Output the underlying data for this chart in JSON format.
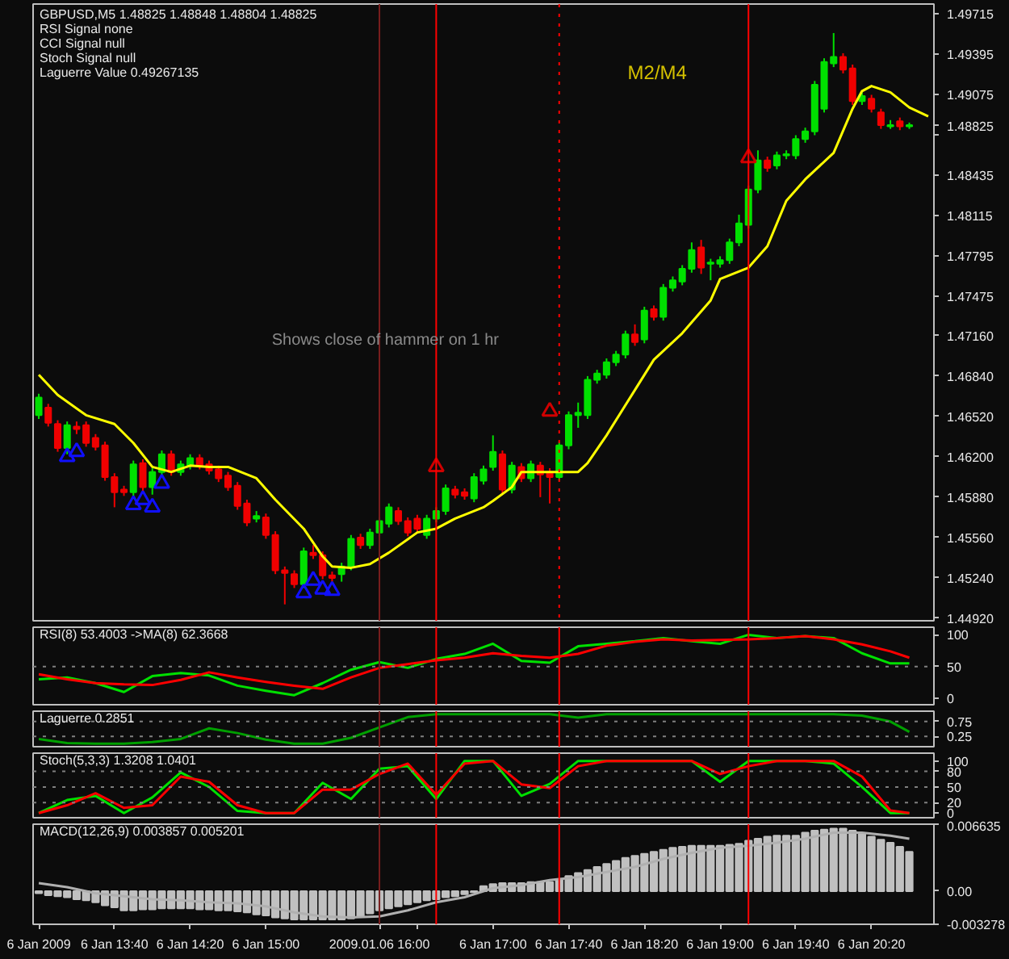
{
  "chart_data": [
    {
      "type": "candlestick",
      "tick_labels": "y",
      "xlim": [
        "2009-01-06T12:57",
        "2009-01-06T20:53"
      ],
      "ylim": [
        1.449,
        1.4979
      ],
      "yticks": [
        1.49715,
        1.49395,
        1.49075,
        1.48825,
        {
          "value": 1.48755,
          "label": null
        },
        1.48435,
        1.48115,
        1.47795,
        1.47475,
        {
          "value": 1.4716,
          "label": "1.47160"
        },
        {
          "value": 1.4684,
          "label": "1.46840"
        },
        {
          "value": 1.4652,
          "label": "1.46520"
        },
        {
          "value": 1.462,
          "label": "1.46200"
        },
        {
          "value": 1.4588,
          "label": "1.45880"
        },
        {
          "value": 1.4556,
          "label": "1.45560"
        },
        {
          "value": 1.4524,
          "label": "1.45240"
        },
        {
          "value": 1.4492,
          "label": "1.44920"
        }
      ],
      "x": [
        "2009-01-06T13:00",
        "2009-01-06T13:05",
        "2009-01-06T13:10",
        "2009-01-06T13:15",
        "2009-01-06T13:20",
        "2009-01-06T13:25",
        "2009-01-06T13:30",
        "2009-01-06T13:35",
        "2009-01-06T13:40",
        "2009-01-06T13:45",
        "2009-01-06T13:50",
        "2009-01-06T13:55",
        "2009-01-06T14:00",
        "2009-01-06T14:05",
        "2009-01-06T14:10",
        "2009-01-06T14:15",
        "2009-01-06T14:20",
        "2009-01-06T14:25",
        "2009-01-06T14:30",
        "2009-01-06T14:35",
        "2009-01-06T14:40",
        "2009-01-06T14:45",
        "2009-01-06T14:50",
        "2009-01-06T14:55",
        "2009-01-06T15:00",
        "2009-01-06T15:05",
        "2009-01-06T15:10",
        "2009-01-06T15:15",
        "2009-01-06T15:20",
        "2009-01-06T15:25",
        "2009-01-06T15:30",
        "2009-01-06T15:35",
        "2009-01-06T15:40",
        "2009-01-06T15:45",
        "2009-01-06T15:50",
        "2009-01-06T15:55",
        "2009-01-06T16:00",
        "2009-01-06T16:05",
        "2009-01-06T16:10",
        "2009-01-06T16:15",
        "2009-01-06T16:20",
        "2009-01-06T16:25",
        "2009-01-06T16:30",
        "2009-01-06T16:35",
        "2009-01-06T16:40",
        "2009-01-06T16:45",
        "2009-01-06T16:50",
        "2009-01-06T16:55",
        "2009-01-06T17:00",
        "2009-01-06T17:05",
        "2009-01-06T17:10",
        "2009-01-06T17:15",
        "2009-01-06T17:20",
        "2009-01-06T17:25",
        "2009-01-06T17:30",
        "2009-01-06T17:35",
        "2009-01-06T17:40",
        "2009-01-06T17:45",
        "2009-01-06T17:50",
        "2009-01-06T17:55",
        "2009-01-06T18:00",
        "2009-01-06T18:05",
        "2009-01-06T18:10",
        "2009-01-06T18:15",
        "2009-01-06T18:20",
        "2009-01-06T18:25",
        "2009-01-06T18:30",
        "2009-01-06T18:35",
        "2009-01-06T18:40",
        "2009-01-06T18:45",
        "2009-01-06T18:50",
        "2009-01-06T18:55",
        "2009-01-06T19:00",
        "2009-01-06T19:05",
        "2009-01-06T19:10",
        "2009-01-06T19:15",
        "2009-01-06T19:20",
        "2009-01-06T19:25",
        "2009-01-06T19:30",
        "2009-01-06T19:35",
        "2009-01-06T19:40",
        "2009-01-06T19:45",
        "2009-01-06T19:50",
        "2009-01-06T19:55",
        "2009-01-06T20:00",
        "2009-01-06T20:05",
        "2009-01-06T20:10",
        "2009-01-06T20:15",
        "2009-01-06T20:20",
        "2009-01-06T20:25",
        "2009-01-06T20:30",
        "2009-01-06T20:35",
        "2009-01-06T20:40"
      ],
      "ohlc": [
        [
          1.4653,
          1.467,
          1.465,
          1.4667
        ],
        [
          1.4659,
          1.4662,
          1.4644,
          1.4647
        ],
        [
          1.4646,
          1.4649,
          1.4624,
          1.4627
        ],
        [
          1.4627,
          1.4648,
          1.4622,
          1.4645
        ],
        [
          1.4644,
          1.4648,
          1.4638,
          1.4642
        ],
        [
          1.4645,
          1.4648,
          1.4628,
          1.4631
        ],
        [
          1.4635,
          1.4638,
          1.4625,
          1.4628
        ],
        [
          1.4629,
          1.4632,
          1.4601,
          1.4604
        ],
        [
          1.4604,
          1.4607,
          1.458,
          1.4592
        ],
        [
          1.4594,
          1.4597,
          1.4589,
          1.4592
        ],
        [
          1.4592,
          1.4617,
          1.4589,
          1.4614
        ],
        [
          1.4615,
          1.4618,
          1.4593,
          1.4596
        ],
        [
          1.4596,
          1.4611,
          1.459,
          1.4608
        ],
        [
          1.4608,
          1.4625,
          1.4605,
          1.4622
        ],
        [
          1.4622,
          1.4625,
          1.4605,
          1.4608
        ],
        [
          1.4608,
          1.4617,
          1.4605,
          1.4614
        ],
        [
          1.4613,
          1.4622,
          1.461,
          1.4619
        ],
        [
          1.4619,
          1.4622,
          1.461,
          1.4613
        ],
        [
          1.4614,
          1.4617,
          1.4606,
          1.4609
        ],
        [
          1.461,
          1.4613,
          1.46,
          1.4603
        ],
        [
          1.4605,
          1.4608,
          1.4593,
          1.4596
        ],
        [
          1.4597,
          1.46,
          1.4578,
          1.4581
        ],
        [
          1.4583,
          1.4586,
          1.4565,
          1.4568
        ],
        [
          1.4571,
          1.4577,
          1.4568,
          1.4573
        ],
        [
          1.4572,
          1.4575,
          1.4555,
          1.4558
        ],
        [
          1.4558,
          1.4561,
          1.4527,
          1.453
        ],
        [
          1.453,
          1.4533,
          1.4503,
          1.4528
        ],
        [
          1.4527,
          1.453,
          1.4516,
          1.4519
        ],
        [
          1.4519,
          1.4548,
          1.4516,
          1.4545
        ],
        [
          1.4544,
          1.455,
          1.4539,
          1.4542
        ],
        [
          1.4542,
          1.4545,
          1.4523,
          1.4526
        ],
        [
          1.4526,
          1.4529,
          1.4521,
          1.4524
        ],
        [
          1.4527,
          1.4536,
          1.4521,
          1.4533
        ],
        [
          1.4533,
          1.4558,
          1.453,
          1.4555
        ],
        [
          1.4556,
          1.4559,
          1.4547,
          1.455
        ],
        [
          1.455,
          1.4563,
          1.4547,
          1.456
        ],
        [
          1.456,
          1.4572,
          1.4557,
          1.4569
        ],
        [
          1.4567,
          1.4583,
          1.4564,
          1.458
        ],
        [
          1.4577,
          1.458,
          1.4566,
          1.4569
        ],
        [
          1.4569,
          1.4572,
          1.4557,
          1.456
        ],
        [
          1.4571,
          1.4574,
          1.456,
          1.4563
        ],
        [
          1.4558,
          1.4574,
          1.4555,
          1.4571
        ],
        [
          1.4571,
          1.458,
          1.4568,
          1.4577
        ],
        [
          1.4577,
          1.4598,
          1.4574,
          1.4595
        ],
        [
          1.4594,
          1.4597,
          1.4587,
          1.459
        ],
        [
          1.4592,
          1.4595,
          1.4586,
          1.4589
        ],
        [
          1.4587,
          1.4607,
          1.4584,
          1.4604
        ],
        [
          1.4601,
          1.4613,
          1.4598,
          1.461
        ],
        [
          1.4612,
          1.4637,
          1.4609,
          1.4624
        ],
        [
          1.4622,
          1.4625,
          1.4591,
          1.4594
        ],
        [
          1.4594,
          1.4616,
          1.4591,
          1.4613
        ],
        [
          1.4612,
          1.4615,
          1.46,
          1.4603
        ],
        [
          1.4603,
          1.4617,
          1.46,
          1.4614
        ],
        [
          1.4613,
          1.4616,
          1.4588,
          1.4606
        ],
        [
          1.4608,
          1.4611,
          1.4583,
          1.4604
        ],
        [
          1.4604,
          1.4632,
          1.4601,
          1.4629
        ],
        [
          1.4629,
          1.4656,
          1.4626,
          1.4653
        ],
        [
          1.4653,
          1.4663,
          1.4643,
          1.4655
        ],
        [
          1.4653,
          1.4684,
          1.465,
          1.4681
        ],
        [
          1.4681,
          1.4689,
          1.4678,
          1.4686
        ],
        [
          1.4685,
          1.4698,
          1.4682,
          1.4695
        ],
        [
          1.4695,
          1.4704,
          1.4692,
          1.4701
        ],
        [
          1.4701,
          1.472,
          1.4698,
          1.4717
        ],
        [
          1.4717,
          1.4725,
          1.4708,
          1.4711
        ],
        [
          1.4713,
          1.4739,
          1.471,
          1.4736
        ],
        [
          1.4737,
          1.474,
          1.4728,
          1.4731
        ],
        [
          1.4731,
          1.4757,
          1.4728,
          1.4754
        ],
        [
          1.4754,
          1.4763,
          1.4751,
          1.476
        ],
        [
          1.4759,
          1.4772,
          1.4756,
          1.4769
        ],
        [
          1.4769,
          1.479,
          1.4766,
          1.4784
        ],
        [
          1.4786,
          1.4792,
          1.4765,
          1.477
        ],
        [
          1.4773,
          1.4777,
          1.476,
          1.4774
        ],
        [
          1.4773,
          1.4779,
          1.477,
          1.4776
        ],
        [
          1.4776,
          1.4793,
          1.4773,
          1.479
        ],
        [
          1.479,
          1.4812,
          1.4787,
          1.4805
        ],
        [
          1.4804,
          1.4835,
          1.4801,
          1.4832
        ],
        [
          1.4832,
          1.4863,
          1.4829,
          1.4855
        ],
        [
          1.4855,
          1.4858,
          1.4846,
          1.4849
        ],
        [
          1.4851,
          1.4862,
          1.4848,
          1.4859
        ],
        [
          1.4859,
          1.4863,
          1.4856,
          1.486
        ],
        [
          1.4859,
          1.4875,
          1.4856,
          1.4872
        ],
        [
          1.4872,
          1.4881,
          1.4869,
          1.4878
        ],
        [
          1.4878,
          1.4918,
          1.4875,
          1.4915
        ],
        [
          1.4896,
          1.4936,
          1.4893,
          1.4933
        ],
        [
          1.4932,
          1.4956,
          1.4929,
          1.4937
        ],
        [
          1.4937,
          1.494,
          1.4924,
          1.4927
        ],
        [
          1.4928,
          1.4931,
          1.4899,
          1.4902
        ],
        [
          1.4902,
          1.4909,
          1.4899,
          1.4906
        ],
        [
          1.4904,
          1.4907,
          1.4893,
          1.4896
        ],
        [
          1.4893,
          1.4896,
          1.488,
          1.4883
        ],
        [
          1.4882,
          1.4887,
          1.488,
          1.4883
        ],
        [
          1.4886,
          1.4889,
          1.4879,
          1.4882
        ],
        [
          1.4882,
          1.4885,
          1.488,
          1.4883
        ]
      ],
      "colors": [
        "#00e000",
        "#f00000",
        "#f00000",
        "#00e000",
        "#f00000",
        "#f00000",
        "#f00000",
        "#f00000",
        "#f00000",
        "#f00000",
        "#00e000",
        "#f00000",
        "#00e000",
        "#00e000",
        "#f00000",
        "#00e000",
        "#00e000",
        "#f00000",
        "#f00000",
        "#f00000",
        "#f00000",
        "#f00000",
        "#f00000",
        "#00e000",
        "#f00000",
        "#f00000",
        "#f00000",
        "#f00000",
        "#00e000",
        "#f00000",
        "#f00000",
        "#f00000",
        "#00e000",
        "#00e000",
        "#f00000",
        "#00e000",
        "#00e000",
        "#00e000",
        "#f00000",
        "#f00000",
        "#f00000",
        "#00e000",
        "#00e000",
        "#00e000",
        "#f00000",
        "#f00000",
        "#00e000",
        "#00e000",
        "#00e000",
        "#f00000",
        "#00e000",
        "#f00000",
        "#00e000",
        "#f00000",
        "#f00000",
        "#00e000",
        "#00e000",
        "#00e000",
        "#00e000",
        "#00e000",
        "#00e000",
        "#00e000",
        "#00e000",
        "#f00000",
        "#00e000",
        "#f00000",
        "#00e000",
        "#00e000",
        "#00e000",
        "#00e000",
        "#f00000",
        "#00e000",
        "#00e000",
        "#00e000",
        "#00e000",
        "#00e000",
        "#00e000",
        "#f00000",
        "#00e000",
        "#00e000",
        "#00e000",
        "#00e000",
        "#00e000",
        "#00e000",
        "#00e000",
        "#f00000",
        "#f00000",
        "#00e000",
        "#f00000",
        "#f00000",
        "#00e000",
        "#f00000",
        "#00e000"
      ],
      "series": [
        {
          "type": "line",
          "color": "#ffff00",
          "x": [
            "2009-01-06T13:00",
            "2009-01-06T13:10",
            "2009-01-06T13:25",
            "2009-01-06T13:40",
            "2009-01-06T13:50",
            "2009-01-06T14:00",
            "2009-01-06T14:10",
            "2009-01-06T14:20",
            "2009-01-06T14:30",
            "2009-01-06T14:40",
            "2009-01-06T14:55",
            "2009-01-06T15:05",
            "2009-01-06T15:20",
            "2009-01-06T15:30",
            "2009-01-06T15:35",
            "2009-01-06T15:45",
            "2009-01-06T15:55",
            "2009-01-06T16:05",
            "2009-01-06T16:20",
            "2009-01-06T16:30",
            "2009-01-06T16:40",
            "2009-01-06T16:55",
            "2009-01-06T17:00",
            "2009-01-06T17:10",
            "2009-01-06T17:15",
            "2009-01-06T17:45",
            "2009-01-06T17:50",
            "2009-01-06T18:00",
            "2009-01-06T18:15",
            "2009-01-06T18:25",
            "2009-01-06T18:40",
            "2009-01-06T18:55",
            "2009-01-06T19:00",
            "2009-01-06T19:15",
            "2009-01-06T19:25",
            "2009-01-06T19:35",
            "2009-01-06T19:45",
            "2009-01-06T20:00",
            "2009-01-06T20:10",
            "2009-01-06T20:15",
            "2009-01-06T20:20",
            "2009-01-06T20:30",
            "2009-01-06T20:40",
            "2009-01-06T20:50"
          ],
          "values": [
            1.4685,
            1.4669,
            1.4653,
            1.4646,
            1.4631,
            1.4612,
            1.4608,
            1.4613,
            1.4612,
            1.4612,
            1.4603,
            1.4586,
            1.4563,
            1.4541,
            1.4533,
            1.4532,
            1.4535,
            1.4544,
            1.456,
            1.4563,
            1.4571,
            1.458,
            1.4585,
            1.4596,
            1.4608,
            1.4608,
            1.4615,
            1.4637,
            1.4673,
            1.4697,
            1.4718,
            1.4744,
            1.4761,
            1.477,
            1.4787,
            1.4823,
            1.484,
            1.4861,
            1.4896,
            1.491,
            1.4914,
            1.4909,
            1.4897,
            1.489
          ]
        },
        {
          "type": "scatter",
          "marker": "triangle",
          "color": "#1010ff",
          "x": [
            "2009-01-06T13:15",
            "2009-01-06T13:20",
            "2009-01-06T13:50",
            "2009-01-06T13:55",
            "2009-01-06T14:00",
            "2009-01-06T14:05",
            "2009-01-06T15:20",
            "2009-01-06T15:25",
            "2009-01-06T15:30",
            "2009-01-06T15:35"
          ],
          "values": [
            1.462,
            1.4624,
            1.4582,
            1.4586,
            1.458,
            1.4599,
            1.4512,
            1.4522,
            1.4515,
            1.4514
          ]
        },
        {
          "type": "scatter",
          "marker": "triangle",
          "color": "#d00000",
          "x": [
            "2009-01-06T16:30",
            "2009-01-06T17:30",
            "2009-01-06T19:15"
          ],
          "values": [
            1.4612,
            1.4656,
            1.4857
          ]
        }
      ],
      "ref_lines": [
        {
          "axis": "x",
          "value": "2009-01-06T16:00",
          "color": "#7a1e1e"
        },
        {
          "axis": "x",
          "value": "2009-01-06T16:30",
          "color": "#ff0000"
        },
        {
          "axis": "x",
          "value": "2009-01-06T17:35",
          "color": "#ff0000",
          "line_style": "dotted"
        },
        {
          "axis": "x",
          "value": "2009-01-06T19:15",
          "color": "#ff0000"
        }
      ],
      "annotations": [
        "GBPUSD,M5 1.48825 1.48848 1.48804 1.48825",
        "RSI Signal none",
        "CCI Signal null",
        "Stoch Signal null",
        "Laguerre Value 0.49267135",
        "Shows close of hammer on 1 hr",
        "M2/M4"
      ]
    },
    {
      "type": "line",
      "tick_labels": "y",
      "xlim": [
        "2009-01-06T12:57",
        "2009-01-06T20:53"
      ],
      "ylim": [
        -10,
        112
      ],
      "yticks": [
        0,
        50,
        100
      ],
      "x": [
        "2009-01-06T13:00",
        "2009-01-06T13:15",
        "2009-01-06T13:30",
        "2009-01-06T13:45",
        "2009-01-06T14:00",
        "2009-01-06T14:15",
        "2009-01-06T14:30",
        "2009-01-06T14:45",
        "2009-01-06T15:00",
        "2009-01-06T15:15",
        "2009-01-06T15:30",
        "2009-01-06T15:45",
        "2009-01-06T16:00",
        "2009-01-06T16:15",
        "2009-01-06T16:30",
        "2009-01-06T16:45",
        "2009-01-06T17:00",
        "2009-01-06T17:15",
        "2009-01-06T17:30",
        "2009-01-06T17:45",
        "2009-01-06T18:00",
        "2009-01-06T18:15",
        "2009-01-06T18:30",
        "2009-01-06T18:45",
        "2009-01-06T19:00",
        "2009-01-06T19:15",
        "2009-01-06T19:30",
        "2009-01-06T19:45",
        "2009-01-06T20:00",
        "2009-01-06T20:15",
        "2009-01-06T20:30",
        "2009-01-06T20:40"
      ],
      "series": [
        {
          "color": "#00e000",
          "values": [
            30,
            33,
            24,
            10,
            35,
            40,
            36,
            20,
            12,
            5,
            24,
            45,
            57,
            48,
            62,
            70,
            86,
            59,
            56,
            82,
            86,
            90,
            95,
            90,
            86,
            100,
            95,
            98,
            95,
            71,
            55,
            55
          ]
        },
        {
          "color": "#ff0000",
          "values": [
            38,
            30,
            24,
            22,
            21,
            29,
            41,
            33,
            26,
            20,
            15,
            33,
            48,
            54,
            60,
            64,
            71,
            67,
            64,
            70,
            83,
            89,
            93,
            91,
            92,
            93,
            95,
            98,
            93,
            85,
            74,
            64
          ]
        }
      ],
      "ref_lines": [
        {
          "axis": "y",
          "value": 50,
          "color": "#808080",
          "line_style": "dotted"
        },
        {
          "axis": "x",
          "value": "2009-01-06T16:00",
          "color": "#7a1e1e"
        },
        {
          "axis": "x",
          "value": "2009-01-06T16:30",
          "color": "#ff0000"
        },
        {
          "axis": "x",
          "value": "2009-01-06T17:35",
          "color": "#ff0000"
        },
        {
          "axis": "x",
          "value": "2009-01-06T19:15",
          "color": "#ff0000"
        }
      ],
      "annotations": [
        "RSI(8) 53.4003 ->MA(8) 62.3668"
      ]
    },
    {
      "type": "line",
      "tick_labels": "y",
      "xlim": [
        "2009-01-06T12:57",
        "2009-01-06T20:53"
      ],
      "ylim": [
        -0.1,
        1.1
      ],
      "yticks": [
        0.25,
        0.75
      ],
      "x": [
        "2009-01-06T13:00",
        "2009-01-06T13:15",
        "2009-01-06T13:30",
        "2009-01-06T13:45",
        "2009-01-06T14:00",
        "2009-01-06T14:15",
        "2009-01-06T14:30",
        "2009-01-06T14:45",
        "2009-01-06T15:00",
        "2009-01-06T15:15",
        "2009-01-06T15:30",
        "2009-01-06T15:45",
        "2009-01-06T16:00",
        "2009-01-06T16:15",
        "2009-01-06T16:30",
        "2009-01-06T16:45",
        "2009-01-06T17:00",
        "2009-01-06T17:15",
        "2009-01-06T17:30",
        "2009-01-06T17:45",
        "2009-01-06T18:00",
        "2009-01-06T18:15",
        "2009-01-06T18:30",
        "2009-01-06T18:45",
        "2009-01-06T19:00",
        "2009-01-06T19:15",
        "2009-01-06T19:30",
        "2009-01-06T19:45",
        "2009-01-06T20:00",
        "2009-01-06T20:15",
        "2009-01-06T20:30",
        "2009-01-06T20:40"
      ],
      "series": [
        {
          "color": "#00a000",
          "values": [
            0.16,
            0.02,
            0,
            0,
            0.06,
            0.16,
            0.52,
            0.36,
            0.14,
            0,
            0,
            0.2,
            0.55,
            0.9,
            1,
            1,
            1,
            1,
            1,
            0.88,
            1,
            1,
            1,
            1,
            1,
            1,
            1,
            1,
            1,
            0.95,
            0.75,
            0.4
          ]
        }
      ],
      "ref_lines": [
        {
          "axis": "y",
          "value": 0.25,
          "color": "#808080",
          "line_style": "dotted"
        },
        {
          "axis": "y",
          "value": 0.75,
          "color": "#808080",
          "line_style": "dotted"
        },
        {
          "axis": "x",
          "value": "2009-01-06T16:00",
          "color": "#7a1e1e"
        },
        {
          "axis": "x",
          "value": "2009-01-06T16:30",
          "color": "#ff0000"
        },
        {
          "axis": "x",
          "value": "2009-01-06T17:35",
          "color": "#ff0000"
        },
        {
          "axis": "x",
          "value": "2009-01-06T19:15",
          "color": "#ff0000"
        }
      ],
      "annotations": [
        "Laguerre 0.2851"
      ]
    },
    {
      "type": "line",
      "tick_labels": "y",
      "xlim": [
        "2009-01-06T12:57",
        "2009-01-06T20:53"
      ],
      "ylim": [
        -9,
        115
      ],
      "yticks": [
        0,
        20,
        50,
        80,
        100
      ],
      "x": [
        "2009-01-06T13:00",
        "2009-01-06T13:15",
        "2009-01-06T13:30",
        "2009-01-06T13:45",
        "2009-01-06T14:00",
        "2009-01-06T14:15",
        "2009-01-06T14:30",
        "2009-01-06T14:45",
        "2009-01-06T15:00",
        "2009-01-06T15:15",
        "2009-01-06T15:30",
        "2009-01-06T15:45",
        "2009-01-06T16:00",
        "2009-01-06T16:15",
        "2009-01-06T16:30",
        "2009-01-06T16:45",
        "2009-01-06T17:00",
        "2009-01-06T17:15",
        "2009-01-06T17:30",
        "2009-01-06T17:45",
        "2009-01-06T18:00",
        "2009-01-06T18:15",
        "2009-01-06T18:30",
        "2009-01-06T18:45",
        "2009-01-06T19:00",
        "2009-01-06T19:15",
        "2009-01-06T19:30",
        "2009-01-06T19:45",
        "2009-01-06T20:00",
        "2009-01-06T20:15",
        "2009-01-06T20:30",
        "2009-01-06T20:40"
      ],
      "series": [
        {
          "color": "#00e000",
          "values": [
            0,
            25,
            33,
            0,
            30,
            78,
            50,
            4,
            0,
            0,
            58,
            27,
            85,
            90,
            27,
            100,
            100,
            33,
            56,
            100,
            100,
            100,
            100,
            100,
            60,
            100,
            100,
            100,
            95,
            50,
            0,
            0
          ]
        },
        {
          "color": "#ff0000",
          "values": [
            0,
            15,
            38,
            10,
            15,
            70,
            60,
            15,
            0,
            0,
            45,
            45,
            75,
            95,
            35,
            95,
            100,
            55,
            48,
            90,
            100,
            100,
            100,
            100,
            75,
            90,
            100,
            100,
            100,
            70,
            5,
            0
          ]
        }
      ],
      "ref_lines": [
        {
          "axis": "y",
          "value": 20,
          "color": "#808080",
          "line_style": "dotted"
        },
        {
          "axis": "y",
          "value": 50,
          "color": "#808080",
          "line_style": "dotted"
        },
        {
          "axis": "y",
          "value": 80,
          "color": "#808080",
          "line_style": "dotted"
        },
        {
          "axis": "x",
          "value": "2009-01-06T16:00",
          "color": "#7a1e1e"
        },
        {
          "axis": "x",
          "value": "2009-01-06T16:30",
          "color": "#ff0000"
        },
        {
          "axis": "x",
          "value": "2009-01-06T17:35",
          "color": "#ff0000"
        },
        {
          "axis": "x",
          "value": "2009-01-06T19:15",
          "color": "#ff0000"
        }
      ],
      "annotations": [
        "Stoch(5,3,3) 1.3208 1.0401"
      ]
    },
    {
      "type": "bar",
      "xlim": [
        "2009-01-06T12:57",
        "2009-01-06T20:53"
      ],
      "ylim": [
        -0.003278,
        0.006635
      ],
      "yticks": [
        -0.003278,
        {
          "value": 0,
          "label": "0.00"
        },
        0.006635
      ],
      "xticks": [
        {
          "value": "2009-01-06T13:00",
          "label": "6 Jan 2009"
        },
        {
          "value": "2009-01-06T13:40",
          "label": "6 Jan 13:40"
        },
        {
          "value": "2009-01-06T14:20",
          "label": "6 Jan 14:20"
        },
        {
          "value": "2009-01-06T15:00",
          "label": "6 Jan 15:00"
        },
        {
          "value": "2009-01-06T16:00",
          "label": "2009.01.06 16:00"
        },
        {
          "value": "2009-01-06T16:20",
          "label": null
        },
        {
          "value": "2009-01-06T17:00",
          "label": "6 Jan 17:00"
        },
        {
          "value": "2009-01-06T17:40",
          "label": "6 Jan 17:40"
        },
        {
          "value": "2009-01-06T18:20",
          "label": "6 Jan 18:20"
        },
        {
          "value": "2009-01-06T19:00",
          "label": "6 Jan 19:00"
        },
        {
          "value": "2009-01-06T19:40",
          "label": "6 Jan 19:40"
        },
        {
          "value": "2009-01-06T20:20",
          "label": "6 Jan 20:20"
        }
      ],
      "x": [
        "2009-01-06T13:00",
        "2009-01-06T13:05",
        "2009-01-06T13:10",
        "2009-01-06T13:15",
        "2009-01-06T13:20",
        "2009-01-06T13:25",
        "2009-01-06T13:30",
        "2009-01-06T13:35",
        "2009-01-06T13:40",
        "2009-01-06T13:45",
        "2009-01-06T13:50",
        "2009-01-06T13:55",
        "2009-01-06T14:00",
        "2009-01-06T14:05",
        "2009-01-06T14:10",
        "2009-01-06T14:15",
        "2009-01-06T14:20",
        "2009-01-06T14:25",
        "2009-01-06T14:30",
        "2009-01-06T14:35",
        "2009-01-06T14:40",
        "2009-01-06T14:45",
        "2009-01-06T14:50",
        "2009-01-06T14:55",
        "2009-01-06T15:00",
        "2009-01-06T15:05",
        "2009-01-06T15:10",
        "2009-01-06T15:15",
        "2009-01-06T15:20",
        "2009-01-06T15:25",
        "2009-01-06T15:30",
        "2009-01-06T15:35",
        "2009-01-06T15:40",
        "2009-01-06T15:45",
        "2009-01-06T15:50",
        "2009-01-06T15:55",
        "2009-01-06T16:00",
        "2009-01-06T16:05",
        "2009-01-06T16:10",
        "2009-01-06T16:15",
        "2009-01-06T16:20",
        "2009-01-06T16:25",
        "2009-01-06T16:30",
        "2009-01-06T16:35",
        "2009-01-06T16:40",
        "2009-01-06T16:45",
        "2009-01-06T16:50",
        "2009-01-06T16:55",
        "2009-01-06T17:00",
        "2009-01-06T17:05",
        "2009-01-06T17:10",
        "2009-01-06T17:15",
        "2009-01-06T17:20",
        "2009-01-06T17:25",
        "2009-01-06T17:30",
        "2009-01-06T17:35",
        "2009-01-06T17:40",
        "2009-01-06T17:45",
        "2009-01-06T17:50",
        "2009-01-06T17:55",
        "2009-01-06T18:00",
        "2009-01-06T18:05",
        "2009-01-06T18:10",
        "2009-01-06T18:15",
        "2009-01-06T18:20",
        "2009-01-06T18:25",
        "2009-01-06T18:30",
        "2009-01-06T18:35",
        "2009-01-06T18:40",
        "2009-01-06T18:45",
        "2009-01-06T18:50",
        "2009-01-06T18:55",
        "2009-01-06T19:00",
        "2009-01-06T19:05",
        "2009-01-06T19:10",
        "2009-01-06T19:15",
        "2009-01-06T19:20",
        "2009-01-06T19:25",
        "2009-01-06T19:30",
        "2009-01-06T19:35",
        "2009-01-06T19:40",
        "2009-01-06T19:45",
        "2009-01-06T19:50",
        "2009-01-06T19:55",
        "2009-01-06T20:00",
        "2009-01-06T20:05",
        "2009-01-06T20:10",
        "2009-01-06T20:15",
        "2009-01-06T20:20",
        "2009-01-06T20:25",
        "2009-01-06T20:30",
        "2009-01-06T20:35",
        "2009-01-06T20:40"
      ],
      "series": [
        {
          "type": "bar",
          "color": "#c0c0c0",
          "values": [
            -0.0002,
            -0.0004,
            -0.0005,
            -0.0006,
            -0.0008,
            -0.0009,
            -0.0011,
            -0.0014,
            -0.0016,
            -0.0019,
            -0.0019,
            -0.0018,
            -0.0018,
            -0.0017,
            -0.0017,
            -0.0017,
            -0.0017,
            -0.0018,
            -0.0018,
            -0.0019,
            -0.0019,
            -0.002,
            -0.0021,
            -0.0023,
            -0.0024,
            -0.0026,
            -0.0027,
            -0.0028,
            -0.0028,
            -0.0028,
            -0.0028,
            -0.0028,
            -0.0028,
            -0.0027,
            -0.0025,
            -0.0022,
            -0.0019,
            -0.0017,
            -0.0015,
            -0.0013,
            -0.0011,
            -0.0009,
            -0.0008,
            -0.0006,
            -0.0005,
            -0.0003,
            -0.0001,
            0.0005,
            0.0007,
            0.0008,
            0.0008,
            0.0008,
            0.0009,
            0.0009,
            0.0009,
            0.0012,
            0.0015,
            0.0018,
            0.0021,
            0.0024,
            0.0027,
            0.003,
            0.0033,
            0.0035,
            0.0037,
            0.0039,
            0.0041,
            0.0043,
            0.0044,
            0.0045,
            0.0045,
            0.0045,
            0.0045,
            0.0046,
            0.0047,
            0.005,
            0.0052,
            0.0054,
            0.0055,
            0.0055,
            0.0055,
            0.0058,
            0.006,
            0.0061,
            0.0062,
            0.0062,
            0.006,
            0.0057,
            0.0054,
            0.0051,
            0.0048,
            0.0044,
            0.0039
          ]
        },
        {
          "type": "line",
          "color": "#b0b0b0",
          "x": [
            "2009-01-06T13:00",
            "2009-01-06T13:15",
            "2009-01-06T13:30",
            "2009-01-06T13:45",
            "2009-01-06T14:00",
            "2009-01-06T14:15",
            "2009-01-06T14:30",
            "2009-01-06T14:45",
            "2009-01-06T15:00",
            "2009-01-06T15:15",
            "2009-01-06T15:30",
            "2009-01-06T15:45",
            "2009-01-06T16:00",
            "2009-01-06T16:15",
            "2009-01-06T16:30",
            "2009-01-06T16:45",
            "2009-01-06T17:00",
            "2009-01-06T17:15",
            "2009-01-06T17:30",
            "2009-01-06T17:45",
            "2009-01-06T18:00",
            "2009-01-06T18:15",
            "2009-01-06T18:30",
            "2009-01-06T18:45",
            "2009-01-06T19:00",
            "2009-01-06T19:15",
            "2009-01-06T19:30",
            "2009-01-06T19:45",
            "2009-01-06T20:00",
            "2009-01-06T20:15",
            "2009-01-06T20:30",
            "2009-01-06T20:40"
          ],
          "values": [
            0.0008,
            0.0004,
            -0.0002,
            -0.0005,
            -0.0008,
            -0.0009,
            -0.0011,
            -0.0012,
            -0.0015,
            -0.0021,
            -0.0025,
            -0.0026,
            -0.0025,
            -0.0019,
            -0.0011,
            -0.0006,
            0.0003,
            0.0006,
            0.0011,
            0.0014,
            0.0019,
            0.0024,
            0.0032,
            0.0038,
            0.0043,
            0.0045,
            0.0048,
            0.0052,
            0.0058,
            0.0058,
            0.0055,
            0.0052
          ]
        }
      ],
      "ref_lines": [
        {
          "axis": "x",
          "value": "2009-01-06T16:00",
          "color": "#7a1e1e"
        },
        {
          "axis": "x",
          "value": "2009-01-06T16:30",
          "color": "#ff0000"
        },
        {
          "axis": "x",
          "value": "2009-01-06T17:35",
          "color": "#ff0000"
        },
        {
          "axis": "x",
          "value": "2009-01-06T19:15",
          "color": "#ff0000"
        }
      ],
      "annotations": [
        "MACD(12,26,9) 0.003857 0.005201"
      ]
    }
  ]
}
